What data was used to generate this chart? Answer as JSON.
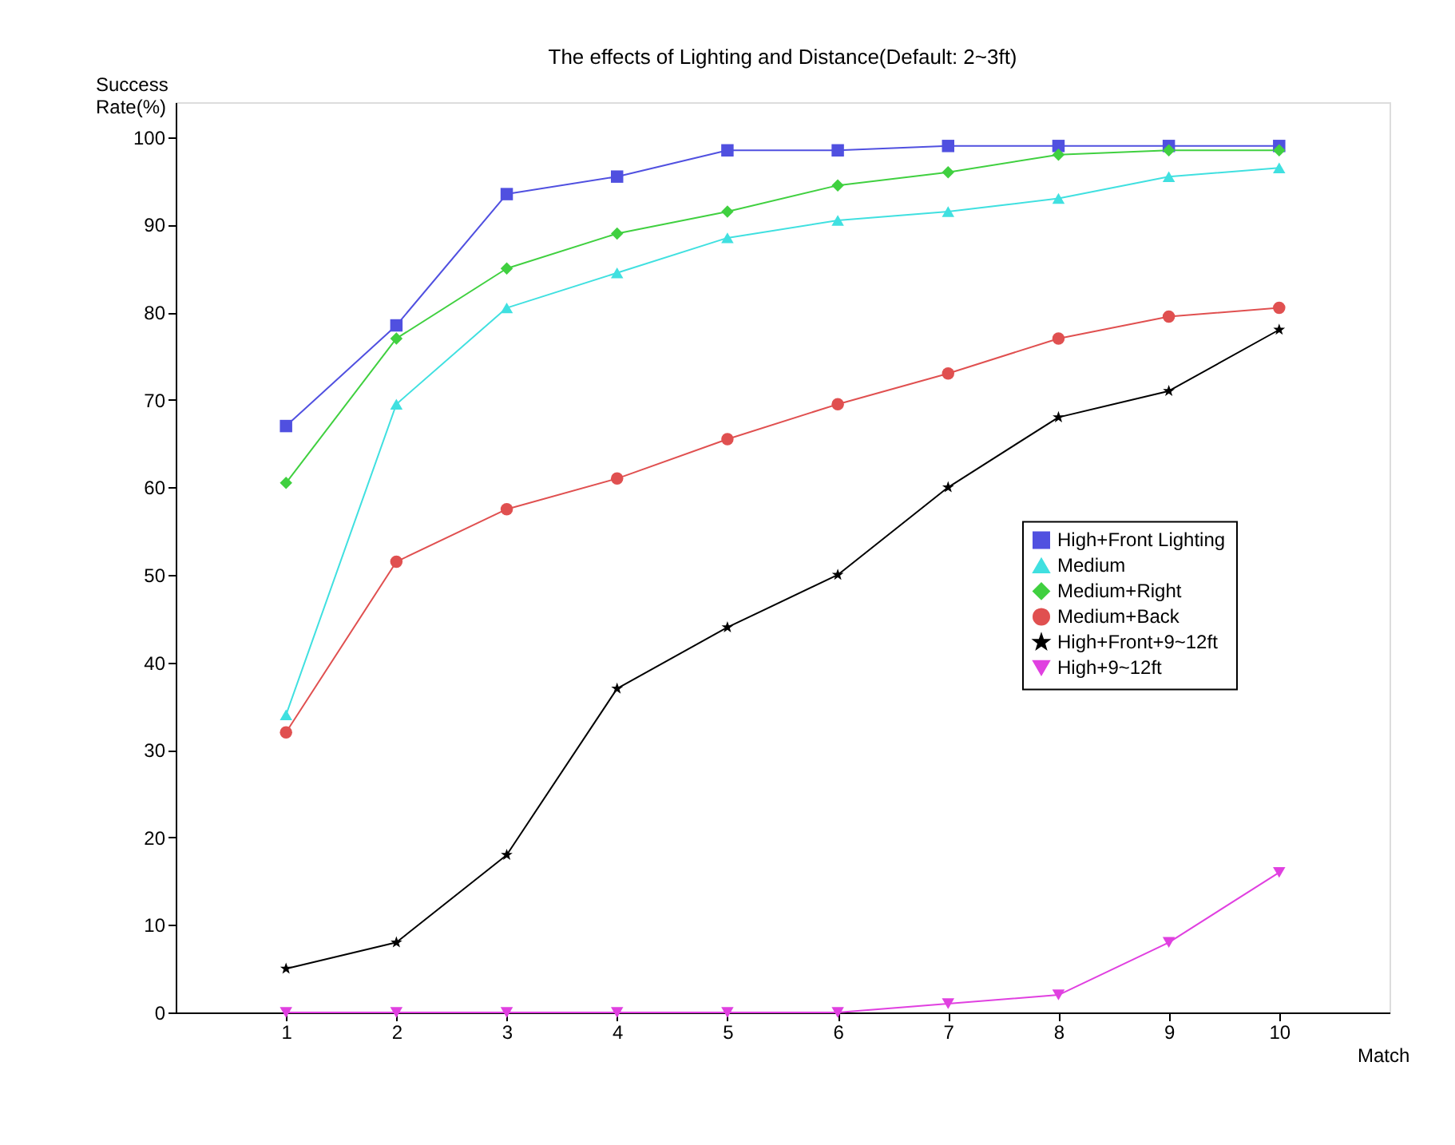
{
  "chart_data": {
    "type": "line",
    "title": "The effects of Lighting and Distance(Default: 2~3ft)",
    "xlabel": "Match",
    "ylabel": "Success Rate(%)",
    "x": [
      1,
      2,
      3,
      4,
      5,
      6,
      7,
      8,
      9,
      10
    ],
    "xlim": [
      0,
      11
    ],
    "xticks": [
      1,
      2,
      3,
      4,
      5,
      6,
      7,
      8,
      9,
      10
    ],
    "ylim": [
      0,
      104
    ],
    "yticks": [
      0,
      10,
      20,
      30,
      40,
      50,
      60,
      70,
      80,
      90,
      100
    ],
    "grid": false,
    "legend": "right",
    "line_style": "solid",
    "series": [
      {
        "name": "High+Front Lighting",
        "color": "#5050e0",
        "marker": "square",
        "values": [
          67,
          78.5,
          93.5,
          95.5,
          98.5,
          98.5,
          99,
          99,
          99,
          99
        ]
      },
      {
        "name": "Medium",
        "color": "#40e0e0",
        "marker": "triangle",
        "values": [
          34,
          69.5,
          80.5,
          84.5,
          88.5,
          90.5,
          91.5,
          93,
          95.5,
          96.5
        ]
      },
      {
        "name": "Medium+Right",
        "color": "#40d040",
        "marker": "diamond",
        "values": [
          60.5,
          77,
          85,
          89,
          91.5,
          94.5,
          96,
          98,
          98.5,
          98.5
        ]
      },
      {
        "name": "Medium+Back",
        "color": "#e05050",
        "marker": "circle",
        "values": [
          32,
          51.5,
          57.5,
          61,
          65.5,
          69.5,
          73,
          77,
          79.5,
          80.5
        ]
      },
      {
        "name": "High+Front+9~12ft",
        "color": "#000000",
        "marker": "star",
        "values": [
          5,
          8,
          18,
          37,
          44,
          50,
          60,
          68,
          71,
          78
        ]
      },
      {
        "name": "High+9~12ft",
        "color": "#e040e0",
        "marker": "triangle-down",
        "values": [
          0,
          0,
          0,
          0,
          0,
          0,
          1,
          2,
          8,
          16
        ]
      }
    ]
  }
}
